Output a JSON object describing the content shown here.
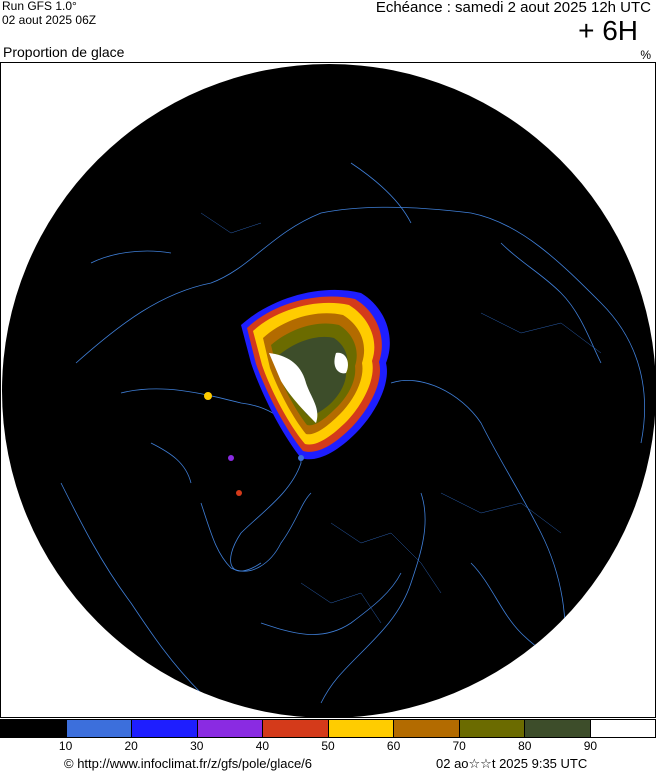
{
  "header": {
    "run_title": "Run GFS 1.0° ",
    "run_date": "02 aout 2025 06Z",
    "echeance": "Echéance : samedi 2 aout 2025 12h UTC",
    "lead_time": "+ 6H",
    "variable": "Proportion de glace",
    "unit": "%"
  },
  "map": {
    "projection": "polar stereographic (north pole)",
    "background": "#000000",
    "coastline_color": "#3f7fd8",
    "icons": [
      "sea-ice-field",
      "coastlines",
      "country-borders"
    ]
  },
  "legend": {
    "colors": [
      "#000000",
      "#3c6fdc",
      "#1e1eff",
      "#8a2be2",
      "#d43a1a",
      "#ffcc00",
      "#b36b00",
      "#6b6b00",
      "#3d4d2a",
      "#ffffff"
    ],
    "ticks": [
      "10",
      "20",
      "30",
      "40",
      "50",
      "60",
      "70",
      "80",
      "90"
    ]
  },
  "footer": {
    "credit": "© http://www.infoclimat.fr/z/gfs/pole/glace/6",
    "run_time": "02 ao☆☆t 2025  9:35 UTC"
  }
}
